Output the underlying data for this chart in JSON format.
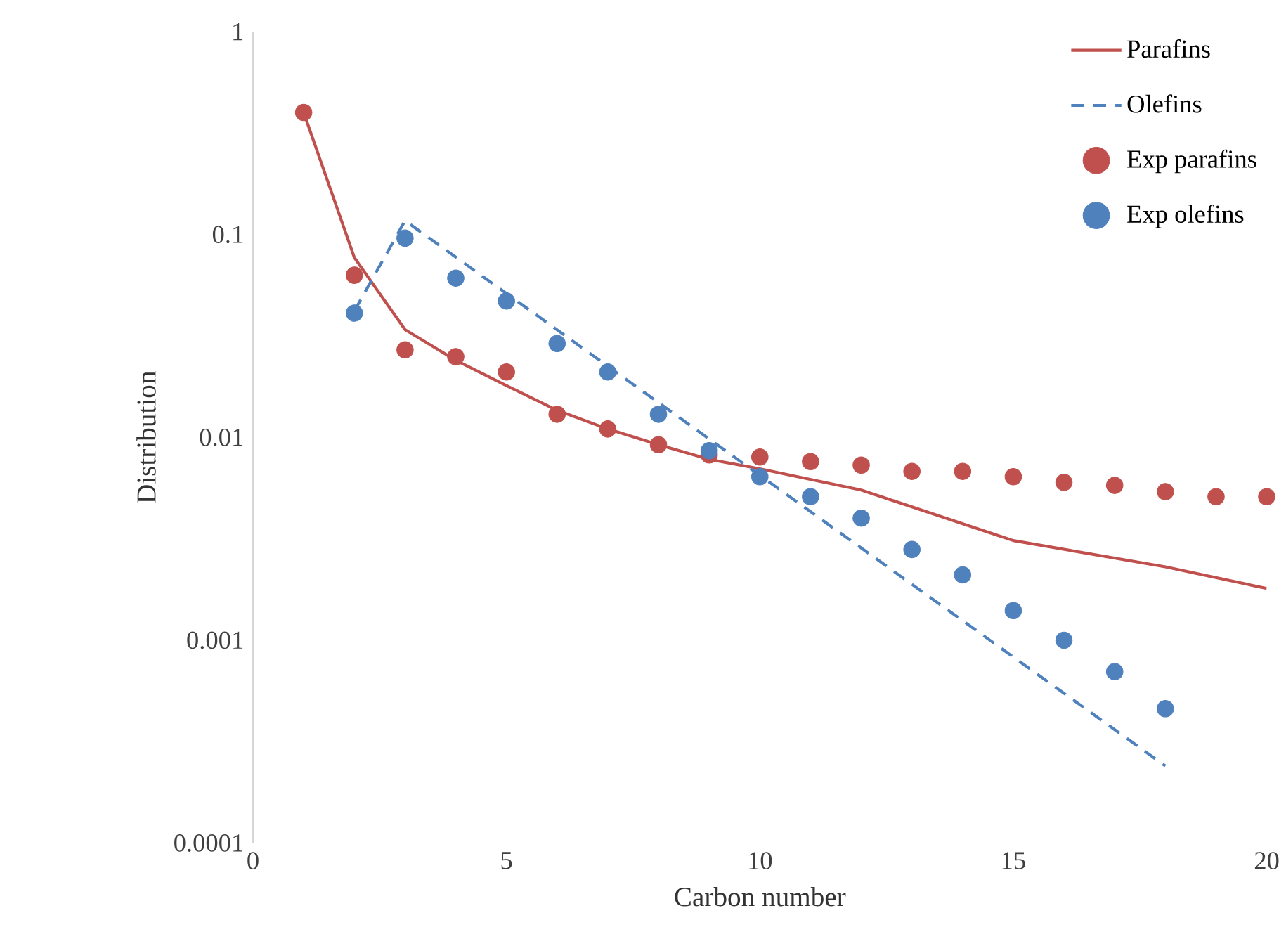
{
  "chart_data": {
    "type": "line",
    "xlabel": "Carbon number",
    "ylabel": "Distribution",
    "log": "y",
    "legend": "top right",
    "xlim": [
      0,
      20
    ],
    "xticks": [
      0,
      5,
      10,
      15,
      20
    ],
    "ylim": [
      0.0001,
      1
    ],
    "yticks": [
      0.0001,
      0.001,
      0.01,
      0.1,
      1
    ],
    "series": [
      {
        "name": "Parafins",
        "type": "line",
        "line_style": "solid",
        "marker": "none",
        "color": "#c0504d",
        "x": [
          1,
          2,
          3,
          4,
          5,
          6,
          7,
          8,
          9,
          10,
          12,
          15,
          18,
          20
        ],
        "values": [
          0.4,
          0.077,
          0.034,
          0.024,
          0.018,
          0.0136,
          0.011,
          0.0092,
          0.0078,
          0.007,
          0.0055,
          0.0031,
          0.0023,
          0.0018
        ]
      },
      {
        "name": "Olefins",
        "type": "line",
        "line_style": "dashed",
        "marker": "none",
        "color": "#4f81bd",
        "x": [
          2,
          3,
          10,
          18
        ],
        "values": [
          0.042,
          0.117,
          0.0065,
          0.00024
        ]
      },
      {
        "name": "Exp parafins",
        "type": "scatter",
        "marker": "circle",
        "color": "#c0504d",
        "x": [
          1,
          2,
          3,
          4,
          5,
          6,
          7,
          8,
          9,
          10,
          11,
          12,
          13,
          14,
          15,
          16,
          17,
          18,
          19,
          20
        ],
        "values": [
          0.4,
          0.063,
          0.027,
          0.025,
          0.021,
          0.013,
          0.011,
          0.0092,
          0.0082,
          0.008,
          0.0076,
          0.0073,
          0.0068,
          0.0068,
          0.0064,
          0.006,
          0.0058,
          0.0054,
          0.0051,
          0.0051
        ]
      },
      {
        "name": "Exp olefins",
        "type": "scatter",
        "marker": "circle",
        "color": "#4f81bd",
        "x": [
          2,
          3,
          4,
          5,
          6,
          7,
          8,
          9,
          10,
          11,
          12,
          13,
          14,
          15,
          16,
          17,
          18
        ],
        "values": [
          0.041,
          0.096,
          0.061,
          0.047,
          0.029,
          0.021,
          0.013,
          0.0086,
          0.0064,
          0.0051,
          0.004,
          0.0028,
          0.0021,
          0.0014,
          0.001,
          0.0007,
          0.00046
        ]
      }
    ]
  }
}
